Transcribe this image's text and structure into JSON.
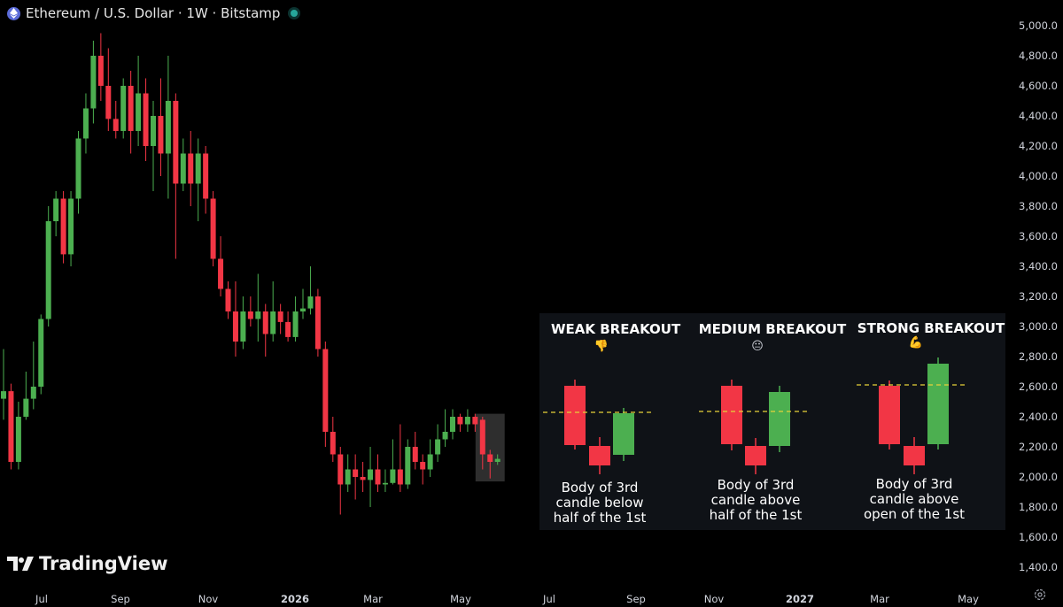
{
  "header": {
    "title": "Ethereum / U.S. Dollar · 1W · Bitstamp"
  },
  "branding": {
    "logo_text": "TradingView"
  },
  "colors": {
    "up": "#4caf50",
    "down": "#f23645",
    "background": "#000000",
    "panel": "#0f1217",
    "dashed": "#e6d23a"
  },
  "chart_data": {
    "type": "candlestick",
    "title": "Ethereum / U.S. Dollar · 1W · Bitstamp",
    "y_ticks": [
      "5,000.0",
      "4,800.0",
      "4,600.0",
      "4,400.0",
      "4,200.0",
      "4,000.0",
      "3,800.0",
      "3,600.0",
      "3,400.0",
      "3,200.0",
      "3,000.0",
      "2,800.0",
      "2,600.0",
      "2,400.0",
      "2,200.0",
      "2,000.0",
      "1,800.0",
      "1,600.0",
      "1,400.0"
    ],
    "x_ticks": [
      "Jul",
      "Sep",
      "Nov",
      "2026",
      "Mar",
      "May",
      "Jul",
      "Sep",
      "Nov",
      "2027",
      "Mar",
      "May"
    ],
    "ylim": [
      1350,
      5050
    ],
    "grid": false,
    "candles": [
      [
        2520,
        2570,
        2850,
        2380
      ],
      [
        2570,
        2100,
        2620,
        2050
      ],
      [
        2100,
        2400,
        2500,
        2050
      ],
      [
        2400,
        2520,
        2700,
        2380
      ],
      [
        2520,
        2600,
        2900,
        2450
      ],
      [
        2600,
        3050,
        3080,
        2550
      ],
      [
        3050,
        3700,
        3800,
        3000
      ],
      [
        3700,
        3850,
        3900,
        3600
      ],
      [
        3850,
        3480,
        3900,
        3420
      ],
      [
        3480,
        3850,
        3900,
        3400
      ],
      [
        3850,
        4250,
        4300,
        3750
      ],
      [
        4250,
        4450,
        4550,
        4150
      ],
      [
        4450,
        4800,
        4900,
        4350
      ],
      [
        4800,
        4600,
        4950,
        4500
      ],
      [
        4600,
        4380,
        4850,
        4300
      ],
      [
        4380,
        4300,
        4500,
        4250
      ],
      [
        4300,
        4600,
        4650,
        4250
      ],
      [
        4600,
        4300,
        4700,
        4150
      ],
      [
        4300,
        4550,
        4800,
        4200
      ],
      [
        4550,
        4200,
        4650,
        4100
      ],
      [
        4200,
        4400,
        4500,
        3900
      ],
      [
        4400,
        4150,
        4650,
        4000
      ],
      [
        4150,
        4500,
        4800,
        3850
      ],
      [
        4500,
        3950,
        4550,
        3450
      ],
      [
        3950,
        4150,
        4250,
        3900
      ],
      [
        4150,
        3950,
        4300,
        3800
      ],
      [
        3950,
        4150,
        4250,
        3700
      ],
      [
        4150,
        3850,
        4200,
        3750
      ],
      [
        3850,
        3450,
        3900,
        3400
      ],
      [
        3450,
        3250,
        3600,
        3200
      ],
      [
        3250,
        3100,
        3300,
        3050
      ],
      [
        3100,
        2900,
        3300,
        2800
      ],
      [
        2900,
        3100,
        3200,
        2850
      ],
      [
        3100,
        3050,
        3200,
        3000
      ],
      [
        3050,
        3100,
        3350,
        2900
      ],
      [
        3100,
        2950,
        3150,
        2800
      ],
      [
        2950,
        3100,
        3300,
        2900
      ],
      [
        3100,
        3030,
        3150,
        2950
      ],
      [
        3030,
        2930,
        3100,
        2900
      ],
      [
        2930,
        3100,
        3200,
        2900
      ],
      [
        3100,
        3120,
        3250,
        3050
      ],
      [
        3120,
        3200,
        3400,
        3080
      ],
      [
        3200,
        2850,
        3250,
        2800
      ],
      [
        2850,
        2300,
        2900,
        2200
      ],
      [
        2300,
        2150,
        2400,
        2100
      ],
      [
        2150,
        1950,
        2200,
        1750
      ],
      [
        1950,
        2050,
        2150,
        1900
      ],
      [
        2050,
        2000,
        2150,
        1850
      ],
      [
        2000,
        1980,
        2100,
        1900
      ],
      [
        1980,
        2050,
        2200,
        1800
      ],
      [
        2050,
        1950,
        2150,
        1900
      ],
      [
        1950,
        1960,
        2050,
        1900
      ],
      [
        1960,
        2050,
        2250,
        1950
      ],
      [
        2050,
        1950,
        2350,
        1900
      ],
      [
        1950,
        2200,
        2250,
        1920
      ],
      [
        2200,
        2100,
        2300,
        2050
      ],
      [
        2100,
        2050,
        2150,
        1950
      ],
      [
        2050,
        2150,
        2250,
        2000
      ],
      [
        2150,
        2250,
        2350,
        2100
      ],
      [
        2250,
        2300,
        2450,
        2200
      ],
      [
        2300,
        2400,
        2450,
        2250
      ],
      [
        2400,
        2350,
        2420,
        2300
      ],
      [
        2350,
        2400,
        2450,
        2300
      ],
      [
        2400,
        2350,
        2420,
        2300
      ],
      [
        2380,
        2150,
        2400,
        2050
      ],
      [
        2150,
        2100,
        2180,
        1990
      ],
      [
        2100,
        2120,
        2150,
        2080
      ]
    ],
    "highlight": {
      "from_index": 64,
      "to_index": 66,
      "ymin": 1970,
      "ymax": 2420
    }
  },
  "panel": {
    "sections": [
      {
        "title": "WEAK BREAKOUT",
        "emoji": "👎",
        "caption": "Body of 3rd\ncandle below\nhalf of the 1st"
      },
      {
        "title": "MEDIUM BREAKOUT",
        "emoji": "😐",
        "caption": "Body of 3rd\ncandle above\nhalf of the 1st"
      },
      {
        "title": "STRONG BREAKOUT",
        "emoji": "💪",
        "caption": "Body of 3rd\ncandle above\nopen of the 1st"
      }
    ]
  }
}
